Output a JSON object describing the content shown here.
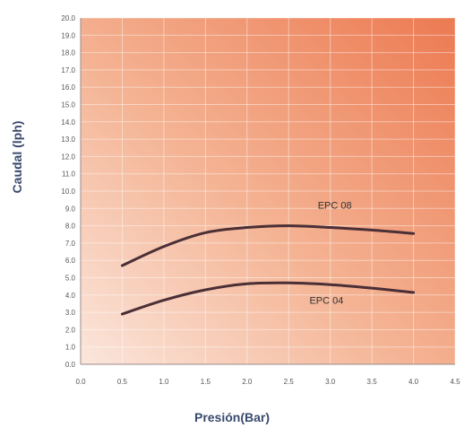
{
  "chart_data": {
    "type": "line",
    "xlabel": "Presión(Bar)",
    "ylabel": "Caudal (lph)",
    "xlim": [
      0,
      4.5
    ],
    "ylim": [
      0,
      20
    ],
    "grid": true,
    "x_ticks": [
      "0.0",
      "0.5",
      "1.0",
      "1.5",
      "2.0",
      "2.5",
      "3.0",
      "3.5",
      "4.0",
      "4.5"
    ],
    "y_ticks": [
      "0.0",
      "1.0",
      "2.0",
      "3.0",
      "4.0",
      "5.0",
      "6.0",
      "7.0",
      "8.0",
      "9.0",
      "10.0",
      "11.0",
      "12.0",
      "13.0",
      "14.0",
      "15.0",
      "16.0",
      "17.0",
      "18.0",
      "19.0",
      "20.0"
    ],
    "series": [
      {
        "name": "EPC 08",
        "x": [
          0.5,
          1.0,
          1.5,
          2.0,
          2.5,
          3.0,
          3.5,
          4.0
        ],
        "y": [
          5.7,
          6.8,
          7.6,
          7.9,
          8.0,
          7.9,
          7.75,
          7.55
        ],
        "label_at": [
          2.85,
          9.0
        ]
      },
      {
        "name": "EPC 04",
        "x": [
          0.5,
          1.0,
          1.5,
          2.0,
          2.5,
          3.0,
          3.5,
          4.0
        ],
        "y": [
          2.9,
          3.7,
          4.3,
          4.65,
          4.7,
          4.6,
          4.4,
          4.15
        ],
        "label_at": [
          2.75,
          3.5
        ]
      }
    ]
  }
}
